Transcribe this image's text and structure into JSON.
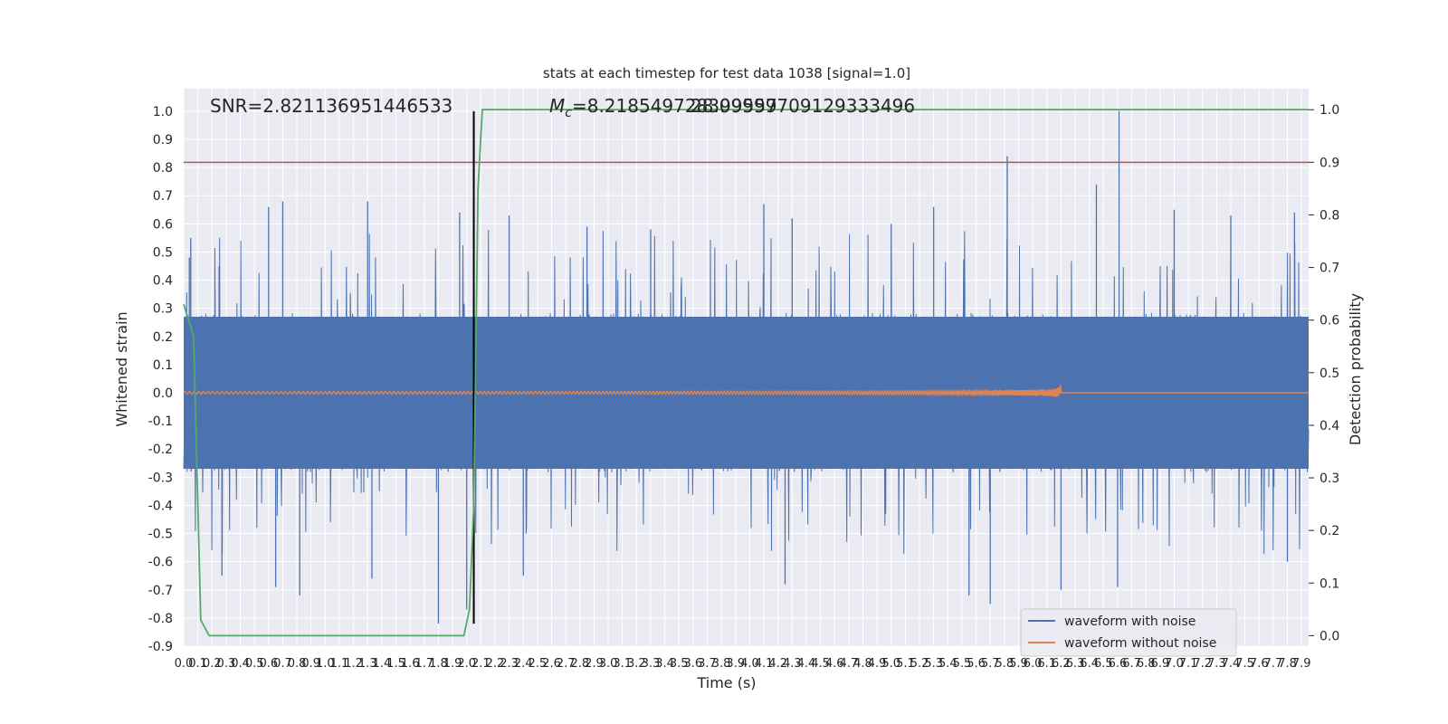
{
  "chart_data": {
    "type": "line",
    "title": "stats at each timestep for test data 1038 [signal=1.0]",
    "xlabel": "Time (s)",
    "ylabel": "Whitened strain",
    "ylabel_right": "Detection probability",
    "xlim": [
      0.0,
      7.95
    ],
    "ylim": [
      -0.9,
      1.08
    ],
    "ylim_right": [
      -0.02,
      1.04
    ],
    "grid": true,
    "legend_position": "lower-right",
    "x_ticks": [
      0.0,
      0.1,
      0.2,
      0.3,
      0.4,
      0.5,
      0.6,
      0.7,
      0.8,
      0.9,
      1.0,
      1.1,
      1.2,
      1.3,
      1.4,
      1.5,
      1.6,
      1.7,
      1.8,
      1.9,
      2.0,
      2.1,
      2.2,
      2.3,
      2.4,
      2.5,
      2.6,
      2.7,
      2.8,
      2.9,
      3.0,
      3.1,
      3.2,
      3.3,
      3.4,
      3.5,
      3.6,
      3.7,
      3.8,
      3.9,
      4.0,
      4.1,
      4.2,
      4.3,
      4.4,
      4.5,
      4.6,
      4.7,
      4.8,
      4.9,
      5.0,
      5.1,
      5.2,
      5.3,
      5.4,
      5.5,
      5.6,
      5.7,
      5.8,
      5.9,
      6.0,
      6.1,
      6.2,
      6.3,
      6.4,
      6.5,
      6.6,
      6.7,
      6.8,
      6.9,
      7.0,
      7.1,
      7.2,
      7.3,
      7.4,
      7.5,
      7.6,
      7.7,
      7.8,
      7.9
    ],
    "y_ticks": [
      -0.9,
      -0.8,
      -0.7,
      -0.6,
      -0.5,
      -0.4,
      -0.3,
      -0.2,
      -0.1,
      0.0,
      0.1,
      0.2,
      0.3,
      0.4,
      0.5,
      0.6,
      0.7,
      0.8,
      0.9,
      1.0
    ],
    "y_ticks_right": [
      0.0,
      0.1,
      0.2,
      0.3,
      0.4,
      0.5,
      0.6,
      0.7,
      0.8,
      0.9,
      1.0
    ],
    "annotations": {
      "snr": "SNR=2.821136951446533",
      "mc": "=8.218549728399557",
      "mc_symbol": "M",
      "mc_sub": "c",
      "overlay": "28.09999709129333496"
    },
    "threshold_line": {
      "axis": "right",
      "value": 0.9,
      "color": "#c44e52"
    },
    "marker_line": {
      "x": 2.05,
      "y_from": -0.82,
      "y_to": 1.0,
      "color": "#000000"
    },
    "series": [
      {
        "name": "waveform with noise",
        "color": "#4c72b0",
        "axis": "left",
        "style": "dense-noise",
        "envelope": [
          0.27,
          -0.27
        ],
        "spikes": [
          {
            "x": 0.04,
            "y": 0.48
          },
          {
            "x": 0.05,
            "y": 0.55
          },
          {
            "x": 0.25,
            "y": 0.45
          },
          {
            "x": 0.27,
            "y": -0.65
          },
          {
            "x": 0.6,
            "y": 0.66
          },
          {
            "x": 0.65,
            "y": -0.69
          },
          {
            "x": 0.7,
            "y": 0.68
          },
          {
            "x": 0.82,
            "y": -0.72
          },
          {
            "x": 1.3,
            "y": 0.68
          },
          {
            "x": 1.33,
            "y": -0.66
          },
          {
            "x": 1.8,
            "y": -0.82
          },
          {
            "x": 1.95,
            "y": 0.64
          },
          {
            "x": 2.0,
            "y": -0.77
          },
          {
            "x": 2.3,
            "y": 0.63
          },
          {
            "x": 2.4,
            "y": -0.65
          },
          {
            "x": 2.85,
            "y": 0.59
          },
          {
            "x": 3.3,
            "y": 0.58
          },
          {
            "x": 4.1,
            "y": 0.67
          },
          {
            "x": 4.25,
            "y": -0.68
          },
          {
            "x": 4.3,
            "y": 0.62
          },
          {
            "x": 5.0,
            "y": 0.6
          },
          {
            "x": 5.3,
            "y": 0.66
          },
          {
            "x": 5.55,
            "y": -0.72
          },
          {
            "x": 5.7,
            "y": -0.75
          },
          {
            "x": 5.82,
            "y": 0.84
          },
          {
            "x": 6.2,
            "y": -0.7
          },
          {
            "x": 6.45,
            "y": 0.74
          },
          {
            "x": 6.61,
            "y": 1.0
          },
          {
            "x": 6.6,
            "y": -0.69
          },
          {
            "x": 7.0,
            "y": 0.65
          },
          {
            "x": 7.4,
            "y": 0.63
          },
          {
            "x": 7.8,
            "y": -0.6
          },
          {
            "x": 7.85,
            "y": 0.64
          }
        ]
      },
      {
        "name": "waveform without noise",
        "color": "#dd8452",
        "axis": "left",
        "style": "chirp",
        "chirp_start": 0.0,
        "chirp_end": 6.2,
        "start_amplitude": 0.005,
        "peak_amplitude": 0.07
      },
      {
        "name": "",
        "color": "#55a868",
        "axis": "right",
        "style": "line",
        "points": [
          [
            0.0,
            0.63
          ],
          [
            0.07,
            0.57
          ],
          [
            0.12,
            0.03
          ],
          [
            0.18,
            0.0
          ],
          [
            1.0,
            0.0
          ],
          [
            1.98,
            0.0
          ],
          [
            2.02,
            0.05
          ],
          [
            2.05,
            0.25
          ],
          [
            2.08,
            0.85
          ],
          [
            2.11,
            1.0
          ],
          [
            7.95,
            1.0
          ]
        ]
      }
    ],
    "legend": [
      {
        "label": "waveform with noise",
        "color": "#4c72b0"
      },
      {
        "label": "waveform without noise",
        "color": "#dd8452"
      }
    ]
  }
}
